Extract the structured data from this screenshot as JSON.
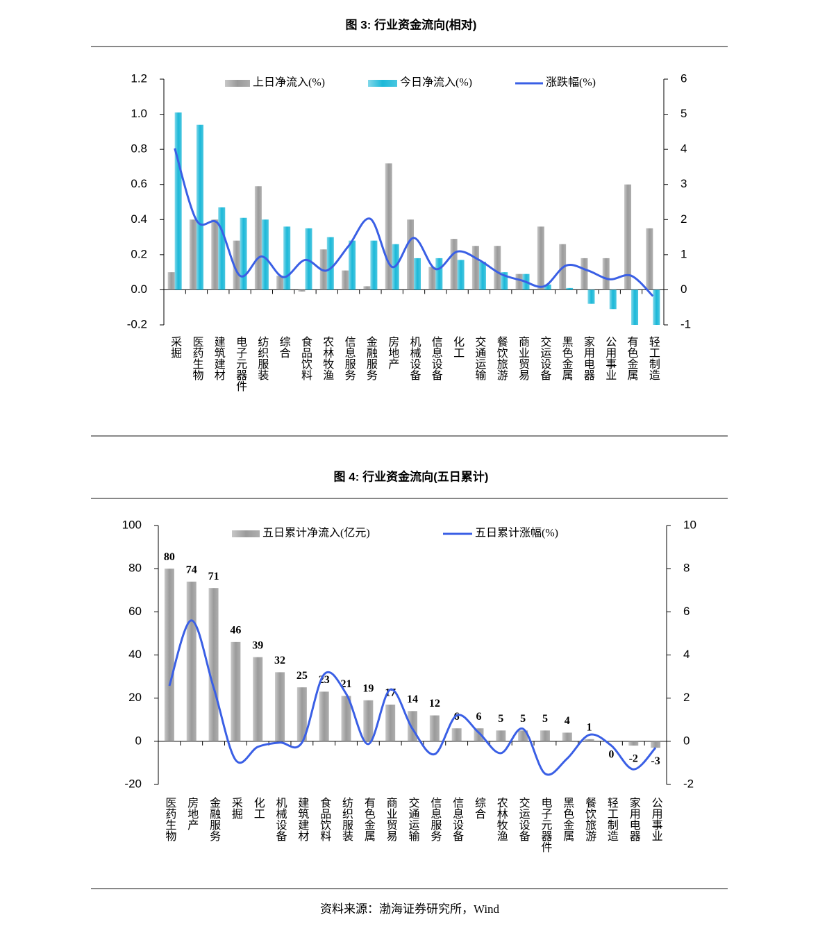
{
  "chart_data": [
    {
      "type": "bar",
      "title": "图 3:  行业资金流向(相对)",
      "categories": [
        "采掘",
        "医药生物",
        "建筑建材",
        "电子元器件",
        "纺织服装",
        "综合",
        "食品饮料",
        "农林牧渔",
        "信息服务",
        "金融服务",
        "房地产",
        "机械设备",
        "信息设备",
        "化工",
        "交通运输",
        "餐饮旅游",
        "商业贸易",
        "交运设备",
        "黑色金属",
        "家用电器",
        "公用事业",
        "有色金属",
        "轻工制造"
      ],
      "series": [
        {
          "name": "上日净流入(%)",
          "type": "bar",
          "color": "#9a9a9a",
          "values": [
            0.1,
            0.4,
            0.4,
            0.28,
            0.59,
            0.08,
            -0.01,
            0.23,
            0.11,
            0.02,
            0.72,
            0.4,
            0.13,
            0.29,
            0.25,
            0.25,
            0.09,
            0.36,
            0.26,
            0.18,
            0.18,
            0.6,
            0.35
          ]
        },
        {
          "name": "今日净流入(%)",
          "type": "bar",
          "color": "#1bb8d8",
          "values": [
            1.01,
            0.94,
            0.47,
            0.41,
            0.4,
            0.36,
            0.35,
            0.3,
            0.28,
            0.28,
            0.26,
            0.18,
            0.18,
            0.17,
            0.16,
            0.1,
            0.09,
            0.03,
            0.01,
            -0.08,
            -0.11,
            -0.2,
            -0.2
          ]
        },
        {
          "name": "涨跌幅(%)",
          "type": "line",
          "axis": "y2",
          "color": "#3a5fe5",
          "values": [
            4.03,
            1.98,
            1.88,
            0.4,
            0.95,
            0.36,
            0.85,
            0.55,
            1.25,
            2.02,
            0.65,
            1.48,
            0.59,
            1.09,
            0.85,
            0.45,
            0.26,
            0.1,
            0.69,
            0.55,
            0.3,
            0.4,
            -0.18
          ]
        }
      ],
      "ylim": [
        -0.2,
        1.2
      ],
      "yticks": [
        -0.2,
        {
          "value": 0,
          "label": "0.0"
        },
        0.2,
        0.4,
        0.6,
        0.8,
        {
          "value": 1,
          "label": "1.0"
        },
        1.2
      ],
      "y2lim": [
        -1,
        6
      ],
      "y2ticks": [
        -1,
        0,
        1,
        2,
        3,
        4,
        5,
        6
      ],
      "data_labels": false
    },
    {
      "type": "bar",
      "title": "图 4:  行业资金流向(五日累计)",
      "categories": [
        "医药生物",
        "房地产",
        "金融服务",
        "采掘",
        "化工",
        "机械设备",
        "建筑建材",
        "食品饮料",
        "纺织服装",
        "有色金属",
        "商业贸易",
        "交通运输",
        "信息服务",
        "信息设备",
        "综合",
        "农林牧渔",
        "交运设备",
        "电子元器件",
        "黑色金属",
        "餐饮旅游",
        "轻工制造",
        "家用电器",
        "公用事业"
      ],
      "series": [
        {
          "name": "五日累计净流入(亿元)",
          "type": "bar",
          "color": "#9a9a9a",
          "values": [
            80,
            74,
            71,
            46,
            39,
            32,
            25,
            23,
            21,
            19,
            17,
            14,
            12,
            6,
            6,
            5,
            5,
            5,
            4,
            1,
            0,
            -2,
            -3
          ]
        },
        {
          "name": "五日累计涨幅(%)",
          "type": "line",
          "axis": "y2",
          "color": "#3a5fe5",
          "values": [
            2.57,
            5.6,
            2.5,
            -0.87,
            -0.26,
            -0.06,
            -0.06,
            3.1,
            2.2,
            -0.13,
            2.4,
            0.58,
            -0.6,
            1.2,
            0.4,
            -0.55,
            0.58,
            -1.5,
            -0.8,
            0.3,
            -0.2,
            -1.3,
            -0.3
          ]
        }
      ],
      "ylim": [
        -20,
        100
      ],
      "yticks": [
        -20,
        0,
        20,
        40,
        60,
        80,
        100
      ],
      "y2lim": [
        -2,
        10
      ],
      "y2ticks": [
        -2,
        0,
        2,
        4,
        6,
        8,
        10
      ],
      "data_labels": true
    }
  ],
  "source": "资料来源：渤海证券研究所，Wind"
}
